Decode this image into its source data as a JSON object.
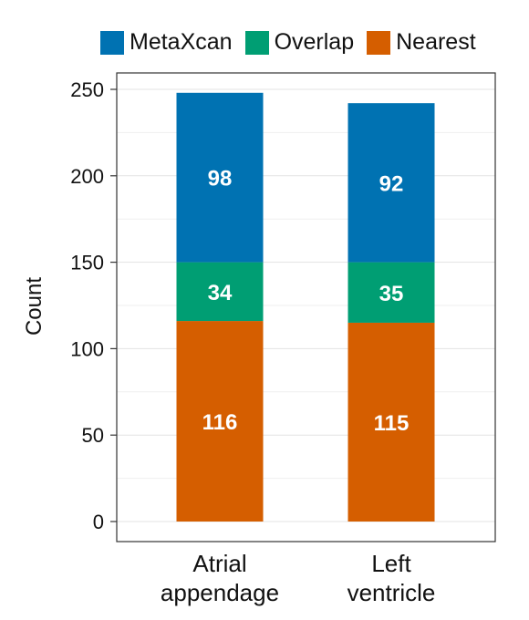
{
  "chart_data": {
    "type": "bar",
    "stacked": true,
    "categories": [
      [
        "Atrial",
        "appendage"
      ],
      [
        "Left",
        "ventricle"
      ]
    ],
    "series": [
      {
        "name": "Nearest",
        "color": "#D55E00",
        "values": [
          116,
          115
        ]
      },
      {
        "name": "Overlap",
        "color": "#009E73",
        "values": [
          34,
          35
        ]
      },
      {
        "name": "MetaXcan",
        "color": "#0072B2",
        "values": [
          98,
          92
        ]
      }
    ],
    "legend_order": [
      "MetaXcan",
      "Overlap",
      "Nearest"
    ],
    "legend_position": "top",
    "ylabel": "Count",
    "ylim": [
      0,
      250
    ],
    "yticks": [
      0,
      50,
      100,
      150,
      200,
      250
    ],
    "grid": true
  }
}
